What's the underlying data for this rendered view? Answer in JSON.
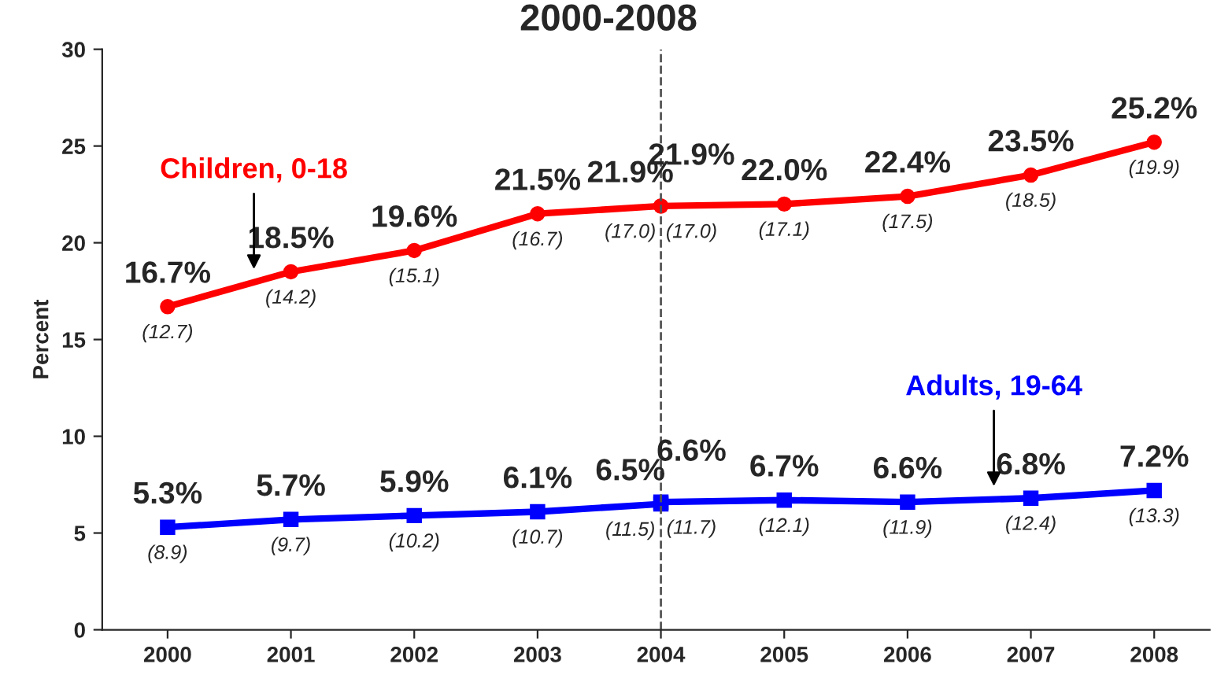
{
  "chart_data": {
    "type": "line",
    "title": "2000-2008",
    "ylabel": "Percent",
    "x": [
      2000,
      2001,
      2002,
      2003,
      2004,
      2004,
      2005,
      2006,
      2007,
      2008
    ],
    "series": [
      {
        "name": "Children, 0-18",
        "color": "#ff0000",
        "marker": "circle",
        "values": [
          16.7,
          18.5,
          19.6,
          21.5,
          21.9,
          21.9,
          22.0,
          22.4,
          23.5,
          25.2
        ],
        "value_labels": [
          "16.7%",
          "18.5%",
          "19.6%",
          "21.5%",
          "21.9%",
          "21.9%",
          "22.0%",
          "22.4%",
          "23.5%",
          "25.2%"
        ]
      },
      {
        "name": "Adults, 19-64",
        "color": "#0000ff",
        "marker": "square",
        "values": [
          5.3,
          5.7,
          5.9,
          6.1,
          6.5,
          6.6,
          6.7,
          6.6,
          6.8,
          7.2
        ],
        "value_labels": [
          "5.3%",
          "5.7%",
          "5.9%",
          "6.1%",
          "6.5%",
          "6.6%",
          "6.7%",
          "6.6%",
          "6.8%",
          "7.2%"
        ]
      }
    ],
    "annotations": [
      {
        "text": "(12.7)",
        "x": 2000,
        "y": 16.7
      },
      {
        "text": "(14.2)",
        "x": 2001,
        "y": 18.5
      },
      {
        "text": "(15.1)",
        "x": 2002,
        "y": 19.6
      },
      {
        "text": "(16.7)",
        "x": 2003,
        "y": 21.5
      },
      {
        "text": "(17.0)",
        "x": 2004,
        "y": 21.9
      },
      {
        "text": "(17.0)",
        "x": 2004,
        "y": 21.9
      },
      {
        "text": "(17.1)",
        "x": 2005,
        "y": 22.0
      },
      {
        "text": "(17.5)",
        "x": 2006,
        "y": 22.4
      },
      {
        "text": "(18.5)",
        "x": 2007,
        "y": 23.5
      },
      {
        "text": "(19.9)",
        "x": 2008,
        "y": 25.2
      },
      {
        "text": "(8.9)",
        "x": 2000,
        "y": 5.3
      },
      {
        "text": "(9.7)",
        "x": 2001,
        "y": 5.7
      },
      {
        "text": "(10.2)",
        "x": 2002,
        "y": 5.9
      },
      {
        "text": "(10.7)",
        "x": 2003,
        "y": 6.1
      },
      {
        "text": "(11.5)",
        "x": 2004,
        "y": 6.5
      },
      {
        "text": "(11.7)",
        "x": 2004,
        "y": 6.6
      },
      {
        "text": "(12.1)",
        "x": 2005,
        "y": 6.7
      },
      {
        "text": "(11.9)",
        "x": 2006,
        "y": 6.6
      },
      {
        "text": "(12.4)",
        "x": 2007,
        "y": 6.8
      },
      {
        "text": "(13.3)",
        "x": 2008,
        "y": 7.2
      }
    ],
    "ref_lines": [
      {
        "axis": "x",
        "value": 2004,
        "color": "#555555",
        "line_style": "dashed"
      }
    ],
    "xlim": [
      1999.47,
      2008.45
    ],
    "xticks": [
      2000,
      2001,
      2002,
      2003,
      2004,
      2005,
      2006,
      2007,
      2008
    ],
    "ylim": [
      0,
      30
    ],
    "yticks": [
      0,
      5,
      10,
      15,
      20,
      25,
      30
    ],
    "grid": false,
    "legend": false
  }
}
